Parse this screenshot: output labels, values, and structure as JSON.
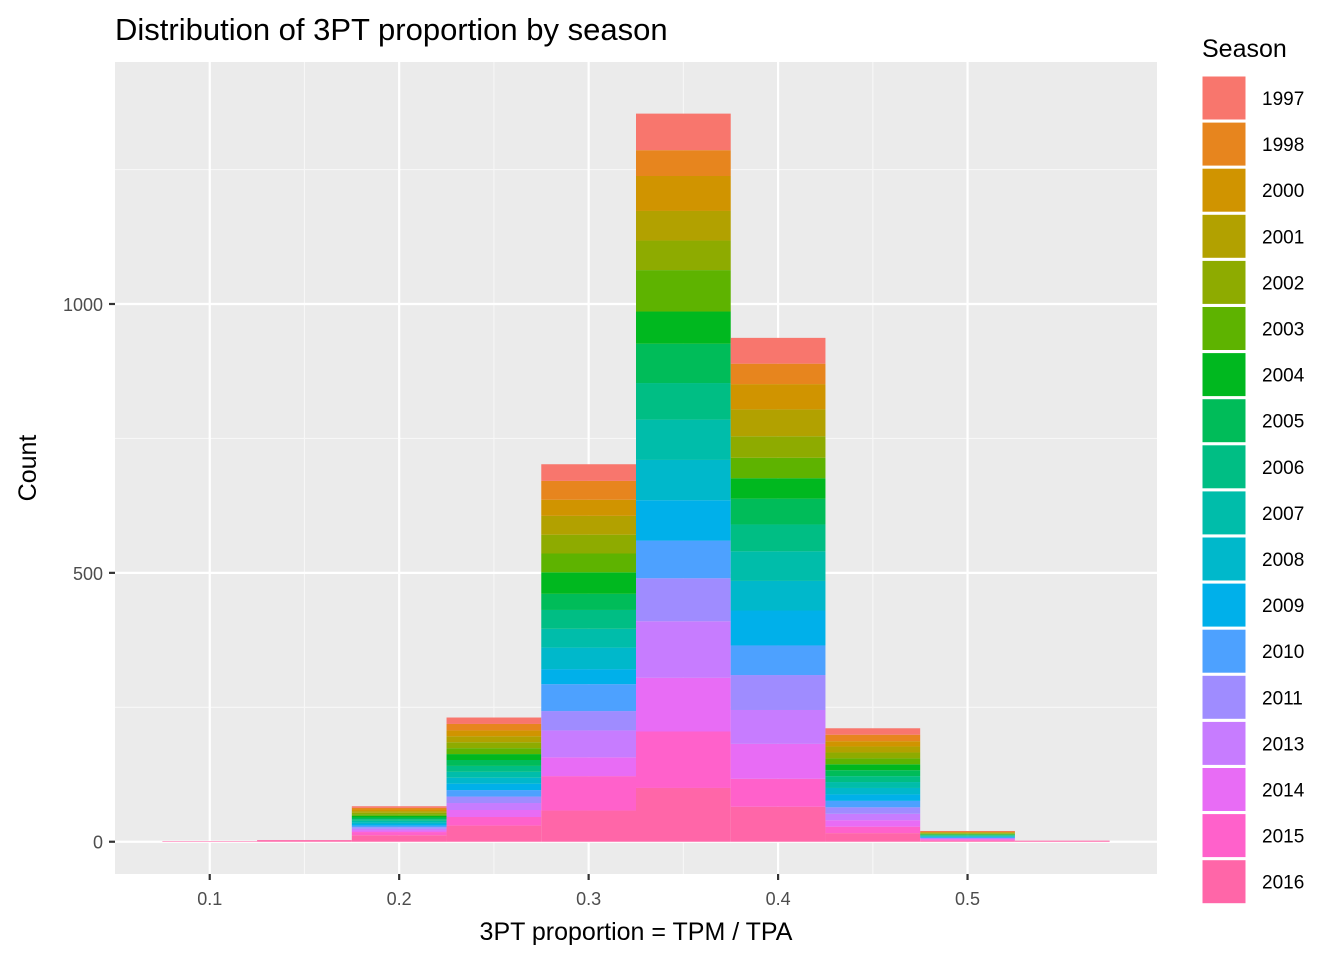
{
  "chart_data": {
    "type": "bar",
    "subtype": "stacked-histogram",
    "title": "Distribution of 3PT proportion by season",
    "xlabel": "3PT proportion = TPM / TPA",
    "ylabel": "Count",
    "xlim": [
      0.05,
      0.6
    ],
    "ylim": [
      -60,
      1450
    ],
    "x_ticks": [
      0.1,
      0.2,
      0.3,
      0.4,
      0.5
    ],
    "x_tick_labels": [
      "0.1",
      "0.2",
      "0.3",
      "0.4",
      "0.5"
    ],
    "y_ticks": [
      0,
      500,
      1000
    ],
    "y_tick_labels": [
      "0",
      "500",
      "1000"
    ],
    "grid": true,
    "legend_title": "Season",
    "legend_position": "right",
    "bin_width": 0.05,
    "bin_centers": [
      0.1,
      0.15,
      0.2,
      0.25,
      0.3,
      0.35,
      0.4,
      0.45,
      0.5,
      0.55
    ],
    "series": [
      {
        "name": "1997",
        "color": "#F8766D",
        "values": [
          0,
          0,
          3,
          12,
          31,
          68,
          48,
          12,
          1,
          0
        ]
      },
      {
        "name": "1998",
        "color": "#E7851E",
        "values": [
          0,
          0,
          3,
          12,
          35,
          48,
          38,
          12,
          1,
          0
        ]
      },
      {
        "name": "2000",
        "color": "#D09400",
        "values": [
          0,
          0,
          3,
          11,
          30,
          65,
          47,
          10,
          1,
          0
        ]
      },
      {
        "name": "2001",
        "color": "#B2A100",
        "values": [
          0,
          0,
          3,
          11,
          35,
          55,
          50,
          11,
          1,
          0
        ]
      },
      {
        "name": "2002",
        "color": "#8EAB00",
        "values": [
          0,
          0,
          3,
          11,
          35,
          55,
          40,
          11,
          1,
          0
        ]
      },
      {
        "name": "2003",
        "color": "#5EB300",
        "values": [
          0,
          0,
          3,
          11,
          35,
          77,
          38,
          11,
          1,
          0
        ]
      },
      {
        "name": "2004",
        "color": "#00B81F",
        "values": [
          0,
          0,
          3,
          11,
          40,
          60,
          38,
          11,
          1,
          0
        ]
      },
      {
        "name": "2005",
        "color": "#00BC59",
        "values": [
          0,
          0,
          3,
          11,
          30,
          73,
          48,
          11,
          1,
          0
        ]
      },
      {
        "name": "2006",
        "color": "#00BE84",
        "values": [
          0,
          0,
          3,
          11,
          35,
          68,
          50,
          11,
          1,
          0
        ]
      },
      {
        "name": "2007",
        "color": "#00BDAA",
        "values": [
          0,
          0,
          3,
          11,
          35,
          75,
          55,
          11,
          1,
          0
        ]
      },
      {
        "name": "2008",
        "color": "#00B8CB",
        "values": [
          0,
          0,
          3,
          11,
          40,
          75,
          55,
          12,
          1,
          0
        ]
      },
      {
        "name": "2009",
        "color": "#00B0EA",
        "values": [
          0,
          0,
          3,
          12,
          28,
          75,
          65,
          12,
          1,
          0
        ]
      },
      {
        "name": "2010",
        "color": "#4DA1FF",
        "values": [
          0,
          0,
          3,
          12,
          50,
          70,
          55,
          12,
          1,
          0
        ]
      },
      {
        "name": "2011",
        "color": "#9F8CFF",
        "values": [
          0,
          0,
          3,
          12,
          36,
          80,
          65,
          12,
          1,
          0
        ]
      },
      {
        "name": "2013",
        "color": "#C77CFF",
        "values": [
          0,
          0,
          3,
          13,
          50,
          105,
          63,
          12,
          1,
          0
        ]
      },
      {
        "name": "2014",
        "color": "#E86CF5",
        "values": [
          0,
          0,
          3,
          13,
          35,
          100,
          65,
          12,
          1,
          0
        ]
      },
      {
        "name": "2015",
        "color": "#FF61CB",
        "values": [
          0,
          0,
          6,
          16,
          64,
          105,
          52,
          12,
          2,
          0
        ]
      },
      {
        "name": "2016",
        "color": "#FF66A8",
        "values": [
          1,
          3,
          12,
          30,
          58,
          100,
          65,
          16,
          2,
          2
        ]
      }
    ]
  }
}
